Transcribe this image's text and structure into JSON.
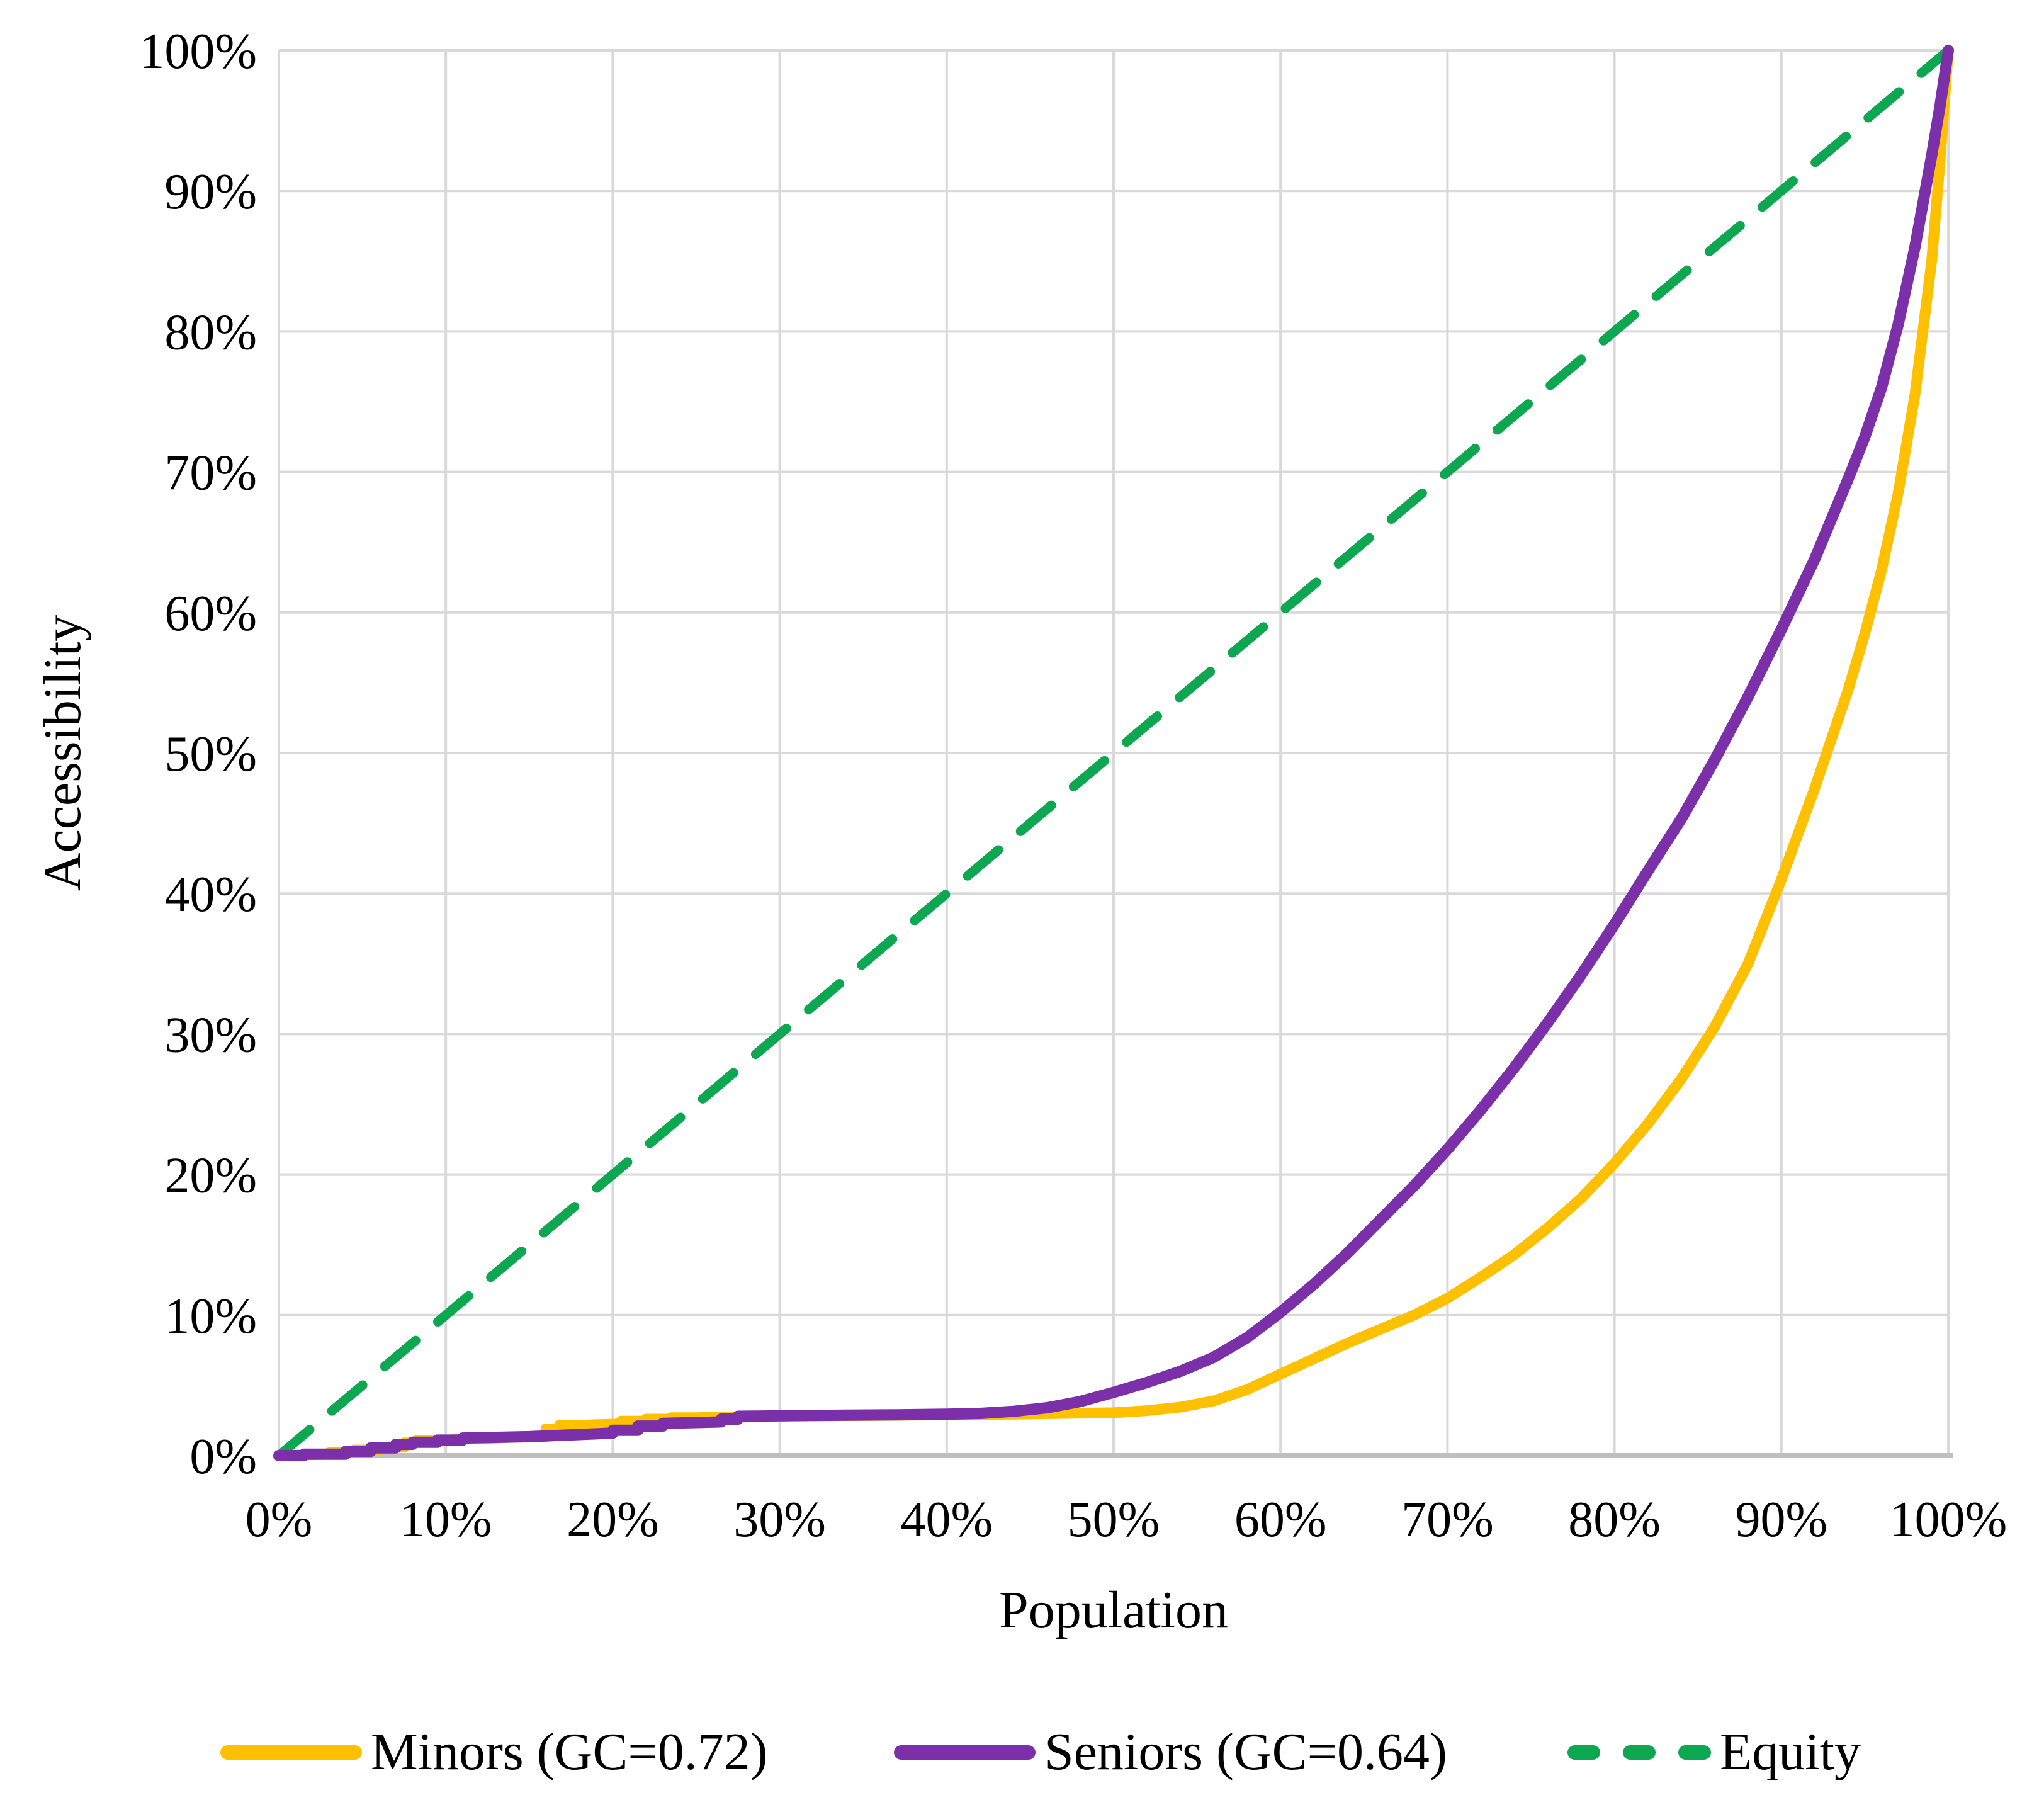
{
  "chart_data": {
    "type": "line",
    "title": "",
    "xlabel": "Population",
    "ylabel": "Accessibility",
    "xlim": [
      0,
      100
    ],
    "ylim": [
      0,
      100
    ],
    "grid": true,
    "legend_position": "bottom",
    "x_ticks": [
      "0%",
      "10%",
      "20%",
      "30%",
      "40%",
      "50%",
      "60%",
      "70%",
      "80%",
      "90%",
      "100%"
    ],
    "y_ticks": [
      "0%",
      "10%",
      "20%",
      "30%",
      "40%",
      "50%",
      "60%",
      "70%",
      "80%",
      "90%",
      "100%"
    ],
    "grid_color": "#D9D9D9",
    "axis_color": "#BFBFBF",
    "series": [
      {
        "name": "Minors (GC=0.72)",
        "color": "#FFC000",
        "style": "solid",
        "points": [
          [
            0,
            0
          ],
          [
            3,
            0.1
          ],
          [
            3,
            0.2
          ],
          [
            4.5,
            0.2
          ],
          [
            4.5,
            0.4
          ],
          [
            6,
            0.4
          ],
          [
            6,
            0.6
          ],
          [
            7.5,
            0.6
          ],
          [
            7.5,
            0.9
          ],
          [
            8.2,
            0.9
          ],
          [
            8.2,
            1.05
          ],
          [
            10.5,
            1.05
          ],
          [
            10.5,
            1.2
          ],
          [
            12,
            1.2
          ],
          [
            13,
            1.25
          ],
          [
            14,
            1.3
          ],
          [
            15.5,
            1.35
          ],
          [
            16,
            1.35
          ],
          [
            16,
            1.9
          ],
          [
            16.8,
            1.9
          ],
          [
            16.8,
            2.15
          ],
          [
            18,
            2.15
          ],
          [
            19,
            2.2
          ],
          [
            20.5,
            2.25
          ],
          [
            20.5,
            2.45
          ],
          [
            22,
            2.45
          ],
          [
            22,
            2.6
          ],
          [
            23.5,
            2.6
          ],
          [
            23.5,
            2.7
          ],
          [
            25,
            2.7
          ],
          [
            26,
            2.73
          ],
          [
            27,
            2.75
          ],
          [
            28,
            2.78
          ],
          [
            30,
            2.8
          ],
          [
            33,
            2.83
          ],
          [
            36,
            2.86
          ],
          [
            40,
            2.9
          ],
          [
            44,
            2.95
          ],
          [
            47,
            3
          ],
          [
            50,
            3.05
          ],
          [
            52,
            3.2
          ],
          [
            54,
            3.45
          ],
          [
            56,
            3.9
          ],
          [
            58,
            4.7
          ],
          [
            60,
            5.8
          ],
          [
            62,
            6.9
          ],
          [
            64,
            8
          ],
          [
            66,
            9
          ],
          [
            68,
            10
          ],
          [
            70,
            11.2
          ],
          [
            72,
            12.7
          ],
          [
            74,
            14.3
          ],
          [
            76,
            16.2
          ],
          [
            78,
            18.3
          ],
          [
            80,
            20.8
          ],
          [
            82,
            23.6
          ],
          [
            84,
            26.8
          ],
          [
            86,
            30.5
          ],
          [
            88,
            35
          ],
          [
            90,
            41
          ],
          [
            92,
            47.5
          ],
          [
            94,
            54.5
          ],
          [
            95,
            58.5
          ],
          [
            96,
            63
          ],
          [
            97,
            68.5
          ],
          [
            98,
            75.5
          ],
          [
            99,
            85
          ],
          [
            99.5,
            92
          ],
          [
            100,
            100
          ]
        ]
      },
      {
        "name": "Seniors (GC=0.64)",
        "color": "#7B2FA8",
        "style": "solid",
        "points": [
          [
            0,
            0
          ],
          [
            1.5,
            0
          ],
          [
            1.5,
            0.1
          ],
          [
            4,
            0.1
          ],
          [
            4,
            0.3
          ],
          [
            5.5,
            0.3
          ],
          [
            5.5,
            0.55
          ],
          [
            7,
            0.55
          ],
          [
            7,
            0.8
          ],
          [
            8,
            0.8
          ],
          [
            8,
            0.95
          ],
          [
            9.5,
            0.95
          ],
          [
            9.5,
            1.1
          ],
          [
            11,
            1.1
          ],
          [
            11,
            1.25
          ],
          [
            13,
            1.3
          ],
          [
            15,
            1.35
          ],
          [
            17,
            1.45
          ],
          [
            19,
            1.55
          ],
          [
            20,
            1.6
          ],
          [
            20,
            1.8
          ],
          [
            21.5,
            1.8
          ],
          [
            21.5,
            2.1
          ],
          [
            23,
            2.1
          ],
          [
            23,
            2.3
          ],
          [
            25,
            2.35
          ],
          [
            26.5,
            2.4
          ],
          [
            26.5,
            2.6
          ],
          [
            27.5,
            2.6
          ],
          [
            27.5,
            2.8
          ],
          [
            29,
            2.82
          ],
          [
            31,
            2.85
          ],
          [
            34,
            2.88
          ],
          [
            37,
            2.9
          ],
          [
            40,
            2.95
          ],
          [
            42,
            3
          ],
          [
            44,
            3.15
          ],
          [
            46,
            3.4
          ],
          [
            48,
            3.85
          ],
          [
            50,
            4.5
          ],
          [
            52,
            5.2
          ],
          [
            54,
            6
          ],
          [
            56,
            7
          ],
          [
            58,
            8.4
          ],
          [
            60,
            10.2
          ],
          [
            62,
            12.2
          ],
          [
            64,
            14.4
          ],
          [
            66,
            16.8
          ],
          [
            68,
            19.2
          ],
          [
            70,
            21.8
          ],
          [
            72,
            24.6
          ],
          [
            74,
            27.6
          ],
          [
            76,
            30.8
          ],
          [
            78,
            34.2
          ],
          [
            80,
            37.8
          ],
          [
            82,
            41.6
          ],
          [
            84,
            45.3
          ],
          [
            86,
            49.5
          ],
          [
            88,
            54
          ],
          [
            90,
            58.8
          ],
          [
            92,
            63.8
          ],
          [
            94,
            69.5
          ],
          [
            95,
            72.5
          ],
          [
            96,
            76
          ],
          [
            97,
            80.5
          ],
          [
            98,
            86
          ],
          [
            99,
            92.5
          ],
          [
            99.5,
            96
          ],
          [
            100,
            100
          ]
        ]
      },
      {
        "name": "Equity",
        "color": "#0CA750",
        "style": "dashed",
        "points": [
          [
            0,
            0
          ],
          [
            100,
            100
          ]
        ]
      }
    ]
  }
}
